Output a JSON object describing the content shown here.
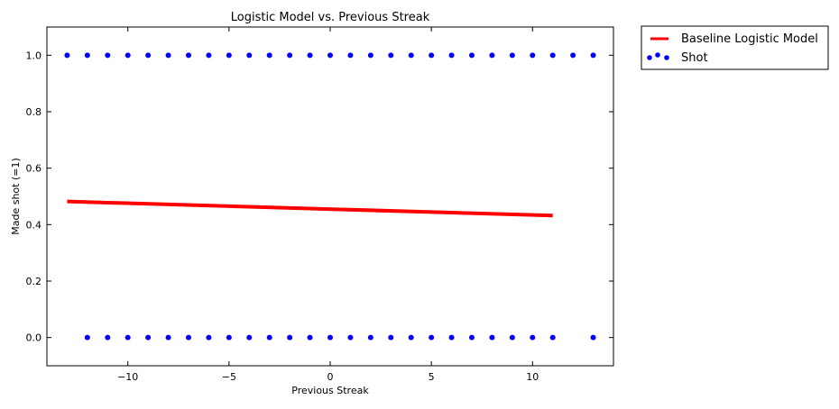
{
  "chart_data": {
    "type": "scatter",
    "title": "Logistic Model vs. Previous Streak",
    "xlabel": "Previous Streak",
    "ylabel": "Made shot (=1)",
    "xlim": [
      -14,
      14
    ],
    "ylim": [
      -0.1,
      1.1
    ],
    "xticks": [
      -10,
      -5,
      0,
      5,
      10
    ],
    "xtick_labels": [
      "−10",
      "−5",
      "0",
      "5",
      "10"
    ],
    "yticks": [
      0.0,
      0.2,
      0.4,
      0.6,
      0.8,
      1.0
    ],
    "ytick_labels": [
      "0.0",
      "0.2",
      "0.4",
      "0.6",
      "0.8",
      "1.0"
    ],
    "grid": false,
    "legend_position": "outside-right-top",
    "series": [
      {
        "name": "Baseline Logistic Model",
        "kind": "line",
        "color": "#ff0000",
        "x": [
          -13,
          11
        ],
        "y": [
          0.482,
          0.432
        ]
      },
      {
        "name": "Shot",
        "kind": "scatter",
        "color": "#0000ff",
        "points_made": [
          -13,
          -12,
          -11,
          -10,
          -9,
          -8,
          -7,
          -6,
          -5,
          -4,
          -3,
          -2,
          -1,
          0,
          1,
          2,
          3,
          4,
          5,
          6,
          7,
          8,
          9,
          10,
          11,
          12,
          13
        ],
        "points_missed": [
          -12,
          -11,
          -10,
          -9,
          -8,
          -7,
          -6,
          -5,
          -4,
          -3,
          -2,
          -1,
          0,
          1,
          2,
          3,
          4,
          5,
          6,
          7,
          8,
          9,
          10,
          11,
          13
        ]
      }
    ]
  }
}
